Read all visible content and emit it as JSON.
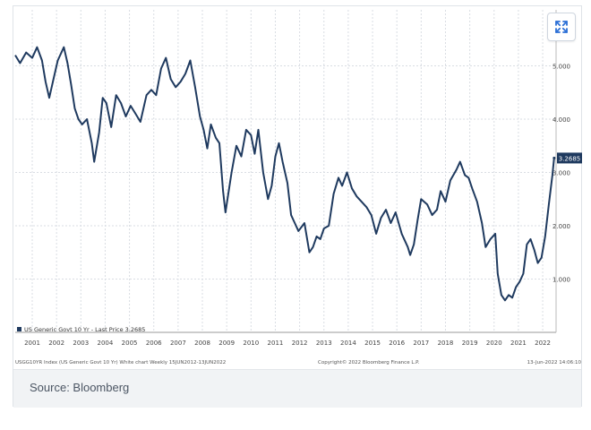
{
  "chart_data": {
    "type": "line",
    "x_ticks": [
      "2001",
      "2002",
      "2003",
      "2004",
      "2005",
      "2006",
      "2007",
      "2008",
      "2009",
      "2010",
      "2011",
      "2012",
      "2013",
      "2014",
      "2015",
      "2016",
      "2017",
      "2018",
      "2019",
      "2020",
      "2021",
      "2022"
    ],
    "y_ticks": [
      "1.000",
      "2.000",
      "3.000",
      "4.000",
      "5.000"
    ],
    "ylim": [
      0,
      6.05
    ],
    "xlim": [
      2000.3,
      2022.55
    ],
    "grid": true,
    "series": [
      {
        "name": "US Generic Govt 10 Yr - Last Price 3.2685",
        "color": "#1f3a5f",
        "x": [
          2000.3,
          2000.5,
          2000.75,
          2001.0,
          2001.2,
          2001.4,
          2001.55,
          2001.7,
          2001.9,
          2002.05,
          2002.3,
          2002.45,
          2002.6,
          2002.75,
          2002.9,
          2003.05,
          2003.25,
          2003.45,
          2003.55,
          2003.75,
          2003.9,
          2004.05,
          2004.25,
          2004.45,
          2004.65,
          2004.85,
          2005.05,
          2005.25,
          2005.45,
          2005.7,
          2005.9,
          2006.1,
          2006.3,
          2006.5,
          2006.7,
          2006.9,
          2007.1,
          2007.3,
          2007.5,
          2007.7,
          2007.9,
          2008.05,
          2008.2,
          2008.35,
          2008.55,
          2008.7,
          2008.85,
          2008.95,
          2009.05,
          2009.2,
          2009.4,
          2009.6,
          2009.8,
          2010.0,
          2010.15,
          2010.3,
          2010.5,
          2010.7,
          2010.85,
          2011.0,
          2011.15,
          2011.3,
          2011.5,
          2011.65,
          2011.8,
          2011.95,
          2012.2,
          2012.4,
          2012.55,
          2012.7,
          2012.85,
          2013.0,
          2013.2,
          2013.4,
          2013.6,
          2013.75,
          2013.95,
          2014.15,
          2014.35,
          2014.55,
          2014.75,
          2014.95,
          2015.15,
          2015.35,
          2015.55,
          2015.75,
          2015.95,
          2016.2,
          2016.45,
          2016.55,
          2016.7,
          2016.85,
          2017.0,
          2017.25,
          2017.45,
          2017.65,
          2017.8,
          2018.0,
          2018.2,
          2018.45,
          2018.6,
          2018.8,
          2018.95,
          2019.1,
          2019.3,
          2019.5,
          2019.65,
          2019.85,
          2020.05,
          2020.15,
          2020.3,
          2020.45,
          2020.6,
          2020.75,
          2020.9,
          2021.05,
          2021.2,
          2021.35,
          2021.5,
          2021.65,
          2021.8,
          2021.95,
          2022.1,
          2022.25,
          2022.4,
          2022.47
        ],
        "y": [
          5.2,
          5.05,
          5.25,
          5.15,
          5.35,
          5.1,
          4.7,
          4.4,
          4.8,
          5.1,
          5.35,
          5.05,
          4.65,
          4.2,
          4.0,
          3.9,
          4.0,
          3.55,
          3.2,
          3.75,
          4.4,
          4.3,
          3.85,
          4.45,
          4.3,
          4.05,
          4.25,
          4.1,
          3.95,
          4.45,
          4.55,
          4.45,
          4.95,
          5.15,
          4.75,
          4.6,
          4.7,
          4.85,
          5.1,
          4.6,
          4.05,
          3.8,
          3.45,
          3.9,
          3.65,
          3.55,
          2.65,
          2.25,
          2.55,
          3.0,
          3.5,
          3.3,
          3.8,
          3.7,
          3.35,
          3.8,
          3.0,
          2.5,
          2.75,
          3.3,
          3.55,
          3.2,
          2.8,
          2.2,
          2.05,
          1.9,
          2.05,
          1.5,
          1.6,
          1.8,
          1.75,
          1.95,
          2.0,
          2.6,
          2.9,
          2.75,
          3.0,
          2.7,
          2.55,
          2.45,
          2.35,
          2.2,
          1.85,
          2.15,
          2.3,
          2.05,
          2.25,
          1.85,
          1.6,
          1.45,
          1.65,
          2.1,
          2.5,
          2.4,
          2.2,
          2.3,
          2.65,
          2.45,
          2.85,
          3.05,
          3.2,
          2.95,
          2.9,
          2.7,
          2.45,
          2.05,
          1.6,
          1.75,
          1.85,
          1.1,
          0.7,
          0.6,
          0.7,
          0.65,
          0.85,
          0.95,
          1.1,
          1.65,
          1.75,
          1.55,
          1.3,
          1.4,
          1.8,
          2.4,
          2.95,
          3.27
        ]
      }
    ],
    "last_value_label": "3.2685",
    "legend_label": "US Generic Govt 10 Yr - Last Price 3.2685",
    "bottom_left_caption": "USGG10YR Index (US Generic Govt 10 Yr) White chart Weekly 15JUN2012-13JUN2022",
    "bottom_center_caption": "Copyright© 2022 Bloomberg Finance L.P.",
    "bottom_right_caption": "13-Jun-2022 14:06:10"
  },
  "footer": {
    "source_text": "Source: Bloomberg"
  },
  "colors": {
    "line": "#1f3a5f",
    "grid": "#d9dde3",
    "footer_bg": "#f1f3f5",
    "accent": "#2b6fd6"
  },
  "icons": {
    "expand": "expand-arrows-icon"
  }
}
